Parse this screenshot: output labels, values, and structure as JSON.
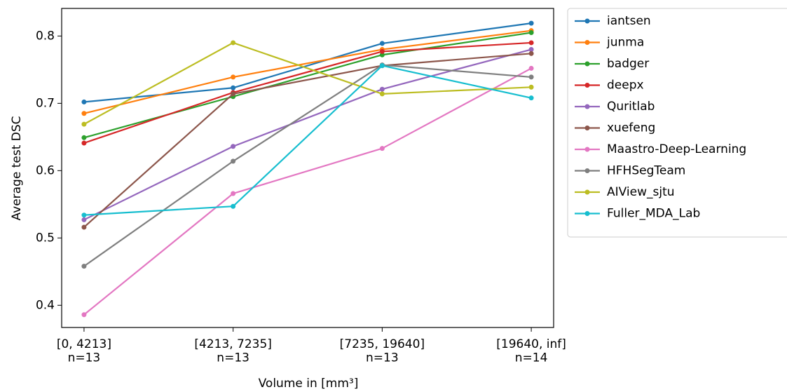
{
  "chart_data": {
    "type": "line",
    "xlabel": "Volume in [mm³]",
    "ylabel": "Average test DSC",
    "categories": [
      "[0, 4213]\nn=13",
      "[4213, 7235]\nn=13",
      "[7235, 19640]\nn=13",
      "[19640, inf]\nn=14"
    ],
    "ylim": [
      0.367,
      0.841
    ],
    "yticks": [
      0.4,
      0.5,
      0.6,
      0.7,
      0.8
    ],
    "grid": false,
    "legend": "outside-upper-right",
    "series": [
      {
        "name": "iantsen",
        "color": "#1f77b4",
        "values": [
          0.702,
          0.723,
          0.789,
          0.819
        ]
      },
      {
        "name": "junma",
        "color": "#ff7f0e",
        "values": [
          0.685,
          0.739,
          0.78,
          0.808
        ]
      },
      {
        "name": "badger",
        "color": "#2ca02c",
        "values": [
          0.649,
          0.71,
          0.772,
          0.805
        ]
      },
      {
        "name": "deepx",
        "color": "#d62728",
        "values": [
          0.641,
          0.716,
          0.777,
          0.79
        ]
      },
      {
        "name": "Quritlab",
        "color": "#9467bd",
        "values": [
          0.527,
          0.636,
          0.721,
          0.78
        ]
      },
      {
        "name": "xuefeng",
        "color": "#8c564b",
        "values": [
          0.516,
          0.714,
          0.756,
          0.774
        ]
      },
      {
        "name": "Maastro-Deep-Learning",
        "color": "#e377c2",
        "values": [
          0.386,
          0.566,
          0.633,
          0.752
        ]
      },
      {
        "name": "HFHSegTeam",
        "color": "#7f7f7f",
        "values": [
          0.458,
          0.614,
          0.757,
          0.739
        ]
      },
      {
        "name": "AIView_sjtu",
        "color": "#bcbd22",
        "values": [
          0.669,
          0.79,
          0.714,
          0.724
        ]
      },
      {
        "name": "Fuller_MDA_Lab",
        "color": "#17becf",
        "values": [
          0.534,
          0.547,
          0.756,
          0.708
        ]
      }
    ]
  }
}
